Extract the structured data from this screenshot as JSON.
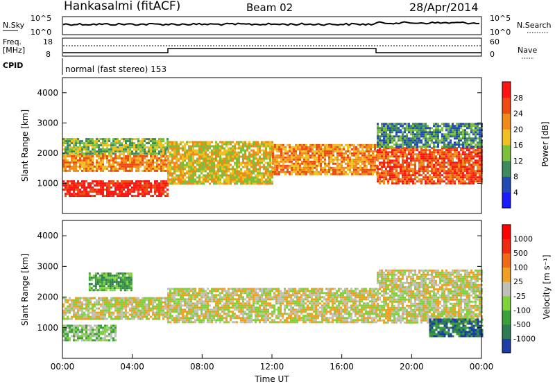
{
  "header": {
    "station": "Hankasalmi (fitACF)",
    "beam": "Beam 02",
    "date": "28/Apr/2014"
  },
  "sky_strip": {
    "left_label": "N.Sky",
    "right_label": "N.Search",
    "left_ticks": [
      "10^5",
      "10^0"
    ],
    "right_ticks": [
      "10^5",
      "10^0"
    ]
  },
  "freq_strip": {
    "left_label_1": "Freq.",
    "left_label_2": "[MHz]",
    "left_ticks": [
      "18",
      "8"
    ],
    "right_label": "Nave",
    "right_ticks": [
      "60",
      "0"
    ]
  },
  "cpid": {
    "label": "CPID",
    "text": "normal (fast stereo) 153"
  },
  "chart_data": [
    {
      "type": "heatmap",
      "name": "Power",
      "title": "",
      "xlabel": "",
      "ylabel": "Slant Range [km]",
      "ylim": [
        0,
        4500
      ],
      "yticks": [
        "1000",
        "2000",
        "3000",
        "4000"
      ],
      "colorbar_label": "Power [dB]",
      "colorbar_ticks": [
        "4",
        "8",
        "12",
        "16",
        "20",
        "24",
        "28"
      ],
      "colors": [
        "#1a1aff",
        "#224ab4",
        "#3d8a5c",
        "#7bbf3a",
        "#f0c020",
        "#f08a18",
        "#f04a10",
        "#ff1414"
      ],
      "echo_bands": [
        {
          "x0": 0.0,
          "x1": 6.0,
          "y0": 600,
          "y1": 1100,
          "level": 7
        },
        {
          "x0": 0.0,
          "x1": 6.0,
          "y0": 1400,
          "y1": 2000,
          "level": 5
        },
        {
          "x0": 0.0,
          "x1": 6.0,
          "y0": 2000,
          "y1": 2500,
          "level": 3
        },
        {
          "x0": 6.0,
          "x1": 12.0,
          "y0": 1000,
          "y1": 2400,
          "level": 4
        },
        {
          "x0": 12.0,
          "x1": 18.0,
          "y0": 1300,
          "y1": 2300,
          "level": 5
        },
        {
          "x0": 18.0,
          "x1": 24.0,
          "y0": 1000,
          "y1": 2200,
          "level": 6
        },
        {
          "x0": 18.0,
          "x1": 24.0,
          "y0": 2200,
          "y1": 3000,
          "level": 2
        }
      ]
    },
    {
      "type": "heatmap",
      "name": "Velocity",
      "title": "",
      "xlabel": "Time UT",
      "ylabel": "Slant Range [km]",
      "ylim": [
        0,
        4500
      ],
      "yticks": [
        "1000",
        "2000",
        "3000",
        "4000"
      ],
      "xticks": [
        "00:00",
        "04:00",
        "08:00",
        "12:00",
        "16:00",
        "20:00",
        "00:00"
      ],
      "colorbar_label": "Velocity [m s⁻¹]",
      "colorbar_ticks": [
        "1000",
        "500",
        "100",
        "25",
        "-25",
        "-100",
        "-500",
        "-1000"
      ],
      "colors": [
        "#1c3ca8",
        "#2e7a52",
        "#3aa03a",
        "#7fd23a",
        "#c0c0b8",
        "#f0a020",
        "#f06a18",
        "#f02a10",
        "#ff0000"
      ],
      "echo_bands": [
        {
          "x0": 0.0,
          "x1": 3.0,
          "y0": 600,
          "y1": 1100,
          "level": 3
        },
        {
          "x0": 0.0,
          "x1": 6.0,
          "y0": 1300,
          "y1": 2000,
          "level": 4
        },
        {
          "x0": 1.5,
          "x1": 4.0,
          "y0": 2200,
          "y1": 2800,
          "level": 2
        },
        {
          "x0": 6.0,
          "x1": 18.0,
          "y0": 1200,
          "y1": 2300,
          "level": 4
        },
        {
          "x0": 18.0,
          "x1": 24.0,
          "y0": 1200,
          "y1": 2900,
          "level": 4
        },
        {
          "x0": 21.0,
          "x1": 24.0,
          "y0": 700,
          "y1": 1300,
          "level": 1
        }
      ]
    }
  ],
  "colors": {
    "axis": "#000000",
    "background": "#ffffff"
  }
}
